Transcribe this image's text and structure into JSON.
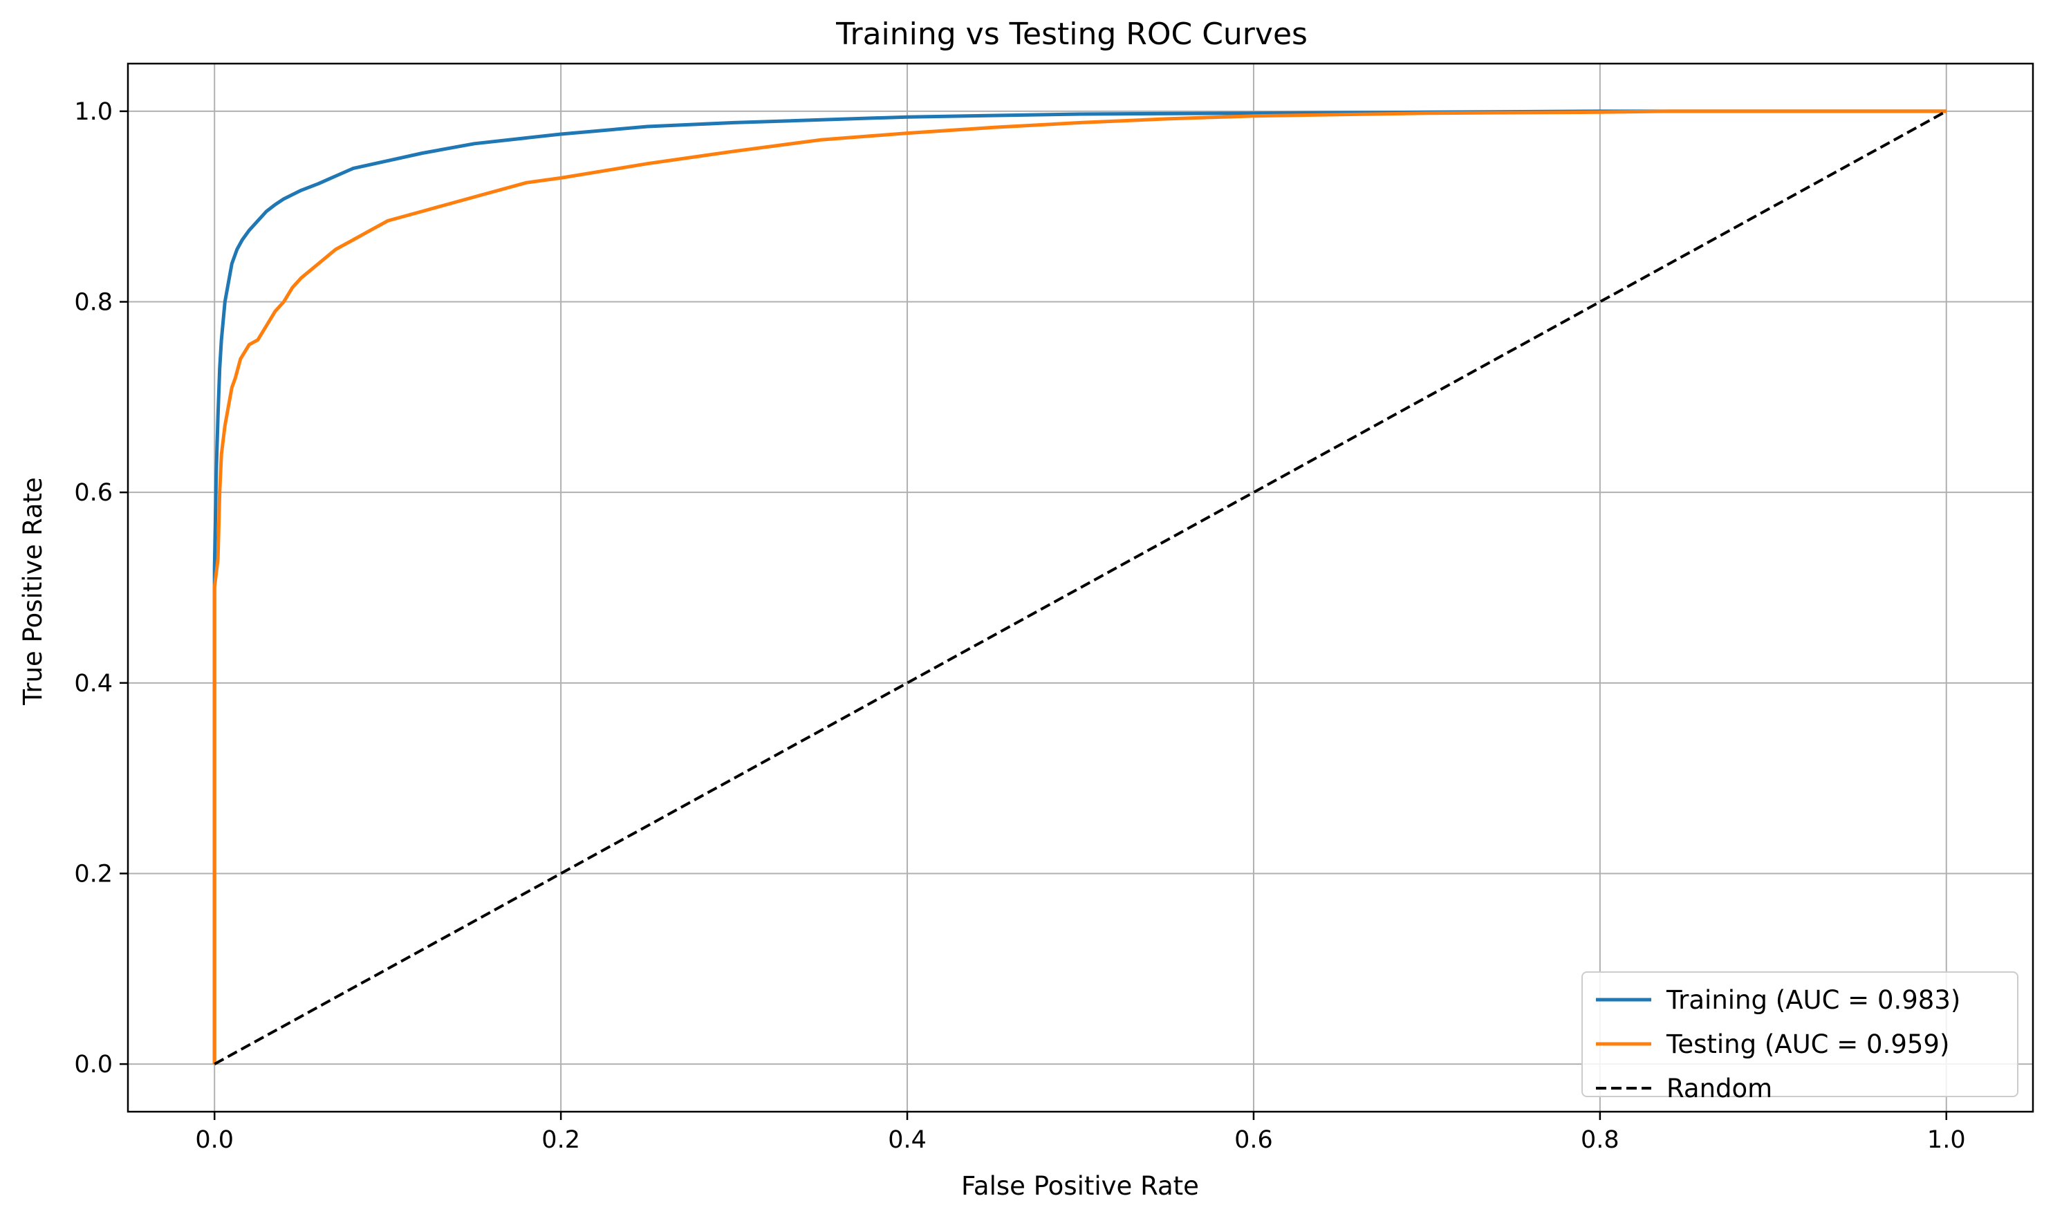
{
  "chart_data": {
    "type": "line",
    "title": "Training vs Testing ROC Curves",
    "xlabel": "False Positive Rate",
    "ylabel": "True Positive Rate",
    "xlim": [
      -0.05,
      1.05
    ],
    "ylim": [
      -0.05,
      1.05
    ],
    "xticks": [
      0.0,
      0.2,
      0.4,
      0.6,
      0.8,
      1.0
    ],
    "yticks": [
      0.0,
      0.2,
      0.4,
      0.6,
      0.8,
      1.0
    ],
    "xtick_labels": [
      "0.0",
      "0.2",
      "0.4",
      "0.6",
      "0.8",
      "1.0"
    ],
    "ytick_labels": [
      "0.0",
      "0.2",
      "0.4",
      "0.6",
      "0.8",
      "1.0"
    ],
    "grid": true,
    "legend_position": "lower-right",
    "series": [
      {
        "name": "Training (AUC = 0.983)",
        "color": "#1f77b4",
        "style": "solid",
        "x": [
          0.0,
          0.0,
          0.001,
          0.002,
          0.003,
          0.004,
          0.006,
          0.008,
          0.01,
          0.013,
          0.016,
          0.02,
          0.025,
          0.03,
          0.035,
          0.04,
          0.05,
          0.06,
          0.07,
          0.08,
          0.1,
          0.12,
          0.15,
          0.2,
          0.25,
          0.3,
          0.4,
          0.5,
          0.6,
          0.7,
          0.8,
          0.9,
          1.0
        ],
        "y": [
          0.0,
          0.52,
          0.62,
          0.68,
          0.73,
          0.76,
          0.8,
          0.82,
          0.84,
          0.855,
          0.865,
          0.875,
          0.885,
          0.895,
          0.902,
          0.908,
          0.917,
          0.924,
          0.932,
          0.94,
          0.948,
          0.956,
          0.966,
          0.976,
          0.984,
          0.988,
          0.994,
          0.997,
          0.998,
          0.999,
          1.0,
          1.0,
          1.0
        ]
      },
      {
        "name": "Testing (AUC = 0.959)",
        "color": "#ff7f0e",
        "style": "solid",
        "x": [
          0.0,
          0.0,
          0.002,
          0.003,
          0.004,
          0.006,
          0.008,
          0.01,
          0.012,
          0.015,
          0.02,
          0.025,
          0.03,
          0.035,
          0.04,
          0.045,
          0.05,
          0.06,
          0.07,
          0.08,
          0.09,
          0.1,
          0.12,
          0.15,
          0.18,
          0.2,
          0.25,
          0.3,
          0.35,
          0.4,
          0.45,
          0.5,
          0.55,
          0.6,
          0.7,
          0.8,
          0.84,
          1.0
        ],
        "y": [
          0.0,
          0.5,
          0.53,
          0.6,
          0.64,
          0.67,
          0.69,
          0.71,
          0.72,
          0.74,
          0.755,
          0.76,
          0.775,
          0.79,
          0.8,
          0.815,
          0.825,
          0.84,
          0.855,
          0.865,
          0.875,
          0.885,
          0.895,
          0.91,
          0.925,
          0.93,
          0.945,
          0.958,
          0.97,
          0.977,
          0.983,
          0.988,
          0.992,
          0.995,
          0.998,
          0.999,
          1.0,
          1.0
        ]
      },
      {
        "name": "Random",
        "color": "#000000",
        "style": "dashed",
        "x": [
          0.0,
          1.0
        ],
        "y": [
          0.0,
          1.0
        ]
      }
    ]
  }
}
